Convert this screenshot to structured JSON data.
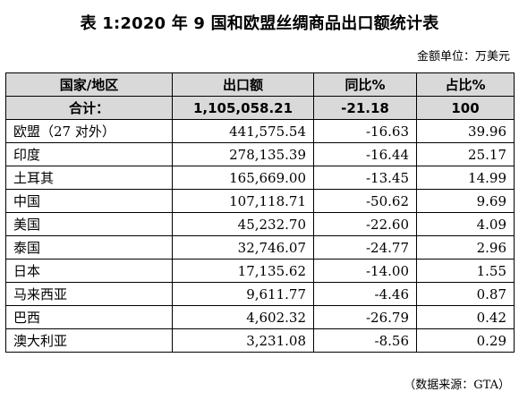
{
  "title": "表 1:2020 年 9 国和欧盟丝绸商品出口额统计表",
  "unit_note": "金额单位：万美元",
  "table": {
    "headers": [
      "国家/地区",
      "出口额",
      "同比%",
      "占比%"
    ],
    "total": {
      "name": "合计：",
      "export": "1,105,058.21",
      "yoy": "-21.18",
      "share": "100"
    },
    "rows": [
      {
        "name": "欧盟（27 对外）",
        "export": "441,575.54",
        "yoy": "-16.63",
        "share": "39.96"
      },
      {
        "name": "印度",
        "export": "278,135.39",
        "yoy": "-16.44",
        "share": "25.17"
      },
      {
        "name": "土耳其",
        "export": "165,669.00",
        "yoy": "-13.45",
        "share": "14.99"
      },
      {
        "name": "中国",
        "export": "107,118.71",
        "yoy": "-50.62",
        "share": "9.69"
      },
      {
        "name": "美国",
        "export": "45,232.70",
        "yoy": "-22.60",
        "share": "4.09"
      },
      {
        "name": "泰国",
        "export": "32,746.07",
        "yoy": "-24.77",
        "share": "2.96"
      },
      {
        "name": "日本",
        "export": "17,135.62",
        "yoy": "-14.00",
        "share": "1.55"
      },
      {
        "name": "马来西亚",
        "export": "9,611.77",
        "yoy": "-4.46",
        "share": "0.87"
      },
      {
        "name": "巴西",
        "export": "4,602.32",
        "yoy": "-26.79",
        "share": "0.42"
      },
      {
        "name": "澳大利亚",
        "export": "3,231.08",
        "yoy": "-8.56",
        "share": "0.29"
      }
    ]
  },
  "source_note": "（数据来源：GTA）"
}
